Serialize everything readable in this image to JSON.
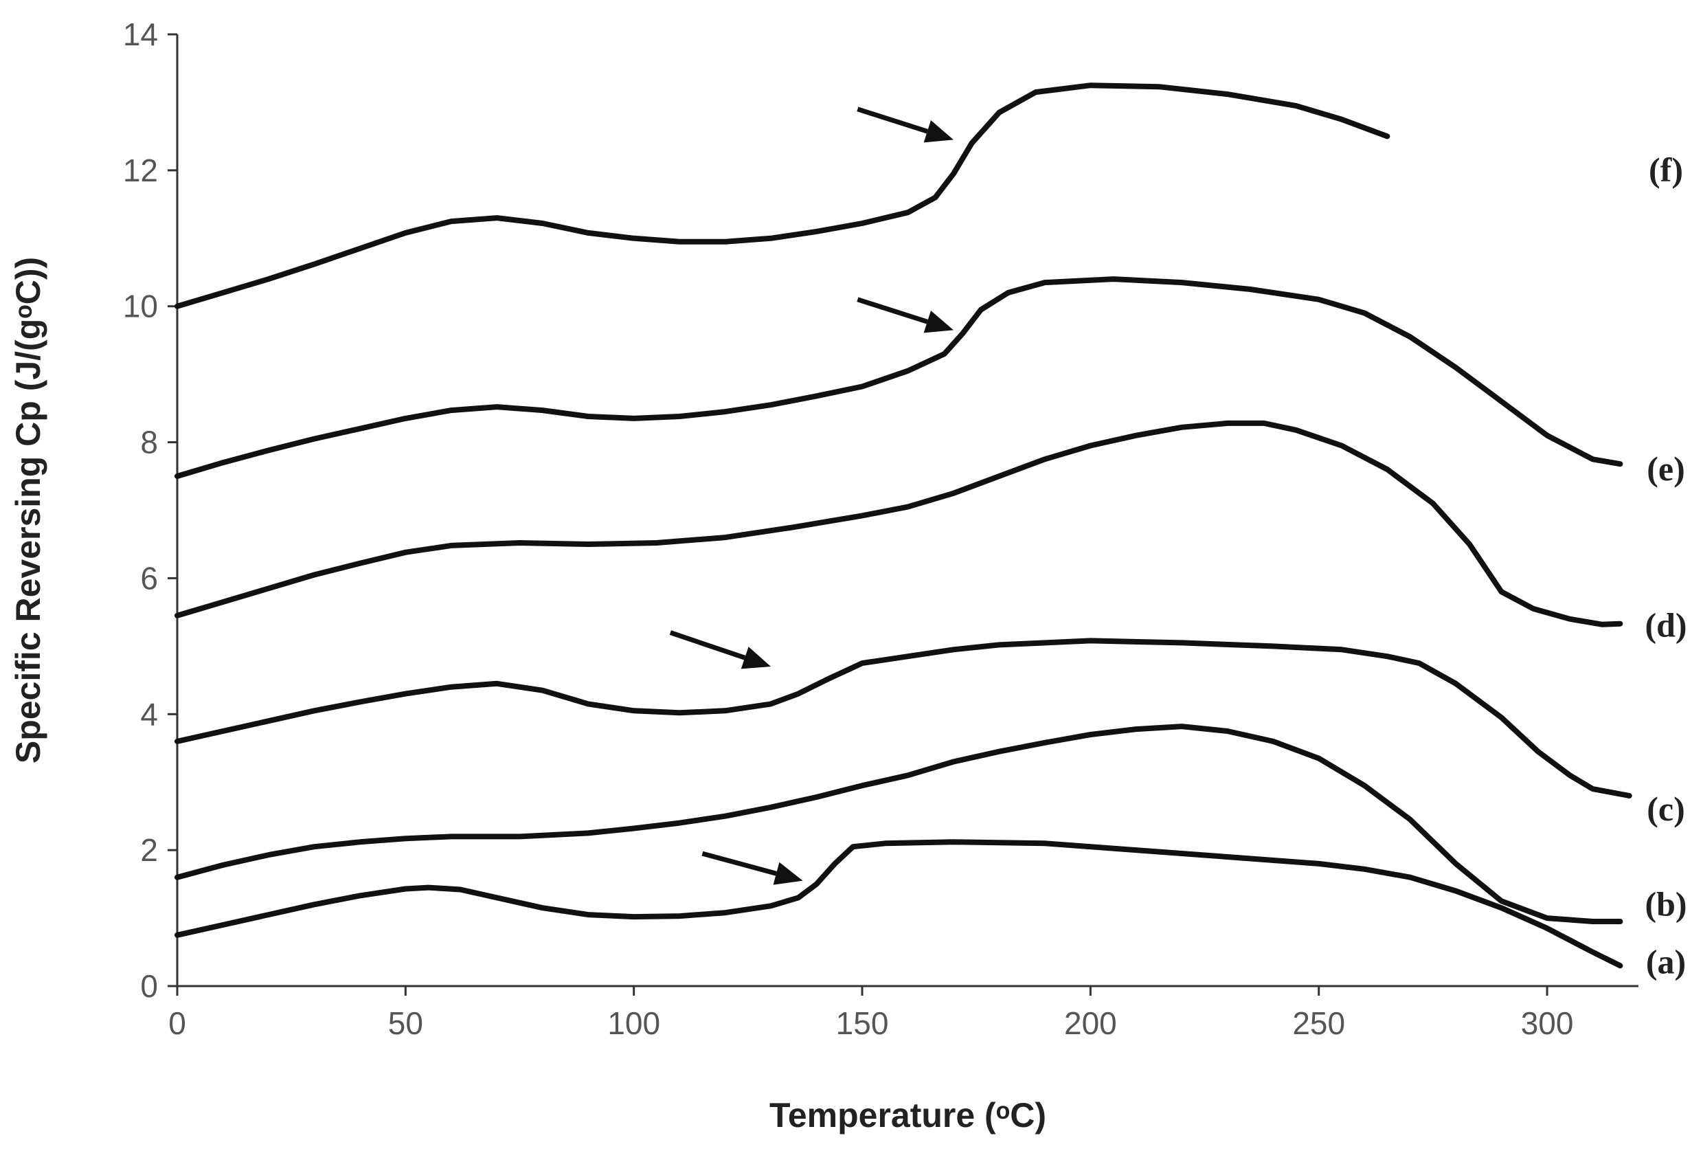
{
  "chart_data": {
    "type": "line",
    "xlabel": "Temperature (ᵒC)",
    "ylabel": "Specific Reversing Cp (J/(gᵒC))",
    "xlim": [
      0,
      320
    ],
    "ylim": [
      0,
      14
    ],
    "xticks": [
      0,
      50,
      100,
      150,
      200,
      250,
      300
    ],
    "yticks": [
      0,
      2,
      4,
      6,
      8,
      10,
      12,
      14
    ],
    "grid": false,
    "series": [
      {
        "name": "(a)",
        "points": [
          [
            0,
            0.75
          ],
          [
            10,
            0.9
          ],
          [
            20,
            1.05
          ],
          [
            30,
            1.2
          ],
          [
            40,
            1.33
          ],
          [
            50,
            1.43
          ],
          [
            55,
            1.45
          ],
          [
            62,
            1.42
          ],
          [
            70,
            1.3
          ],
          [
            80,
            1.15
          ],
          [
            90,
            1.05
          ],
          [
            100,
            1.02
          ],
          [
            110,
            1.03
          ],
          [
            120,
            1.08
          ],
          [
            130,
            1.18
          ],
          [
            136,
            1.3
          ],
          [
            140,
            1.5
          ],
          [
            144,
            1.8
          ],
          [
            148,
            2.05
          ],
          [
            155,
            2.1
          ],
          [
            170,
            2.12
          ],
          [
            190,
            2.1
          ],
          [
            210,
            2.0
          ],
          [
            230,
            1.9
          ],
          [
            250,
            1.8
          ],
          [
            260,
            1.72
          ],
          [
            270,
            1.6
          ],
          [
            280,
            1.4
          ],
          [
            290,
            1.15
          ],
          [
            300,
            0.85
          ],
          [
            310,
            0.5
          ],
          [
            316,
            0.3
          ]
        ]
      },
      {
        "name": "(b)",
        "points": [
          [
            0,
            1.6
          ],
          [
            10,
            1.78
          ],
          [
            20,
            1.93
          ],
          [
            30,
            2.05
          ],
          [
            40,
            2.12
          ],
          [
            50,
            2.17
          ],
          [
            60,
            2.2
          ],
          [
            75,
            2.2
          ],
          [
            90,
            2.25
          ],
          [
            100,
            2.32
          ],
          [
            110,
            2.4
          ],
          [
            120,
            2.5
          ],
          [
            130,
            2.63
          ],
          [
            140,
            2.78
          ],
          [
            150,
            2.95
          ],
          [
            160,
            3.1
          ],
          [
            170,
            3.3
          ],
          [
            180,
            3.45
          ],
          [
            190,
            3.58
          ],
          [
            200,
            3.7
          ],
          [
            210,
            3.78
          ],
          [
            220,
            3.82
          ],
          [
            230,
            3.75
          ],
          [
            240,
            3.6
          ],
          [
            250,
            3.35
          ],
          [
            260,
            2.95
          ],
          [
            270,
            2.45
          ],
          [
            280,
            1.8
          ],
          [
            290,
            1.25
          ],
          [
            300,
            1.0
          ],
          [
            310,
            0.95
          ],
          [
            316,
            0.95
          ]
        ]
      },
      {
        "name": "(c)",
        "points": [
          [
            0,
            3.6
          ],
          [
            10,
            3.75
          ],
          [
            20,
            3.9
          ],
          [
            30,
            4.05
          ],
          [
            40,
            4.18
          ],
          [
            50,
            4.3
          ],
          [
            60,
            4.4
          ],
          [
            70,
            4.45
          ],
          [
            80,
            4.35
          ],
          [
            90,
            4.15
          ],
          [
            100,
            4.05
          ],
          [
            110,
            4.02
          ],
          [
            120,
            4.05
          ],
          [
            130,
            4.15
          ],
          [
            136,
            4.3
          ],
          [
            142,
            4.5
          ],
          [
            150,
            4.75
          ],
          [
            160,
            4.85
          ],
          [
            170,
            4.95
          ],
          [
            180,
            5.02
          ],
          [
            200,
            5.08
          ],
          [
            220,
            5.05
          ],
          [
            240,
            5.0
          ],
          [
            255,
            4.95
          ],
          [
            265,
            4.85
          ],
          [
            272,
            4.75
          ],
          [
            280,
            4.45
          ],
          [
            290,
            3.95
          ],
          [
            298,
            3.45
          ],
          [
            305,
            3.1
          ],
          [
            310,
            2.9
          ],
          [
            318,
            2.8
          ]
        ]
      },
      {
        "name": "(d)",
        "points": [
          [
            0,
            5.45
          ],
          [
            10,
            5.65
          ],
          [
            20,
            5.85
          ],
          [
            30,
            6.05
          ],
          [
            40,
            6.22
          ],
          [
            50,
            6.38
          ],
          [
            60,
            6.48
          ],
          [
            75,
            6.52
          ],
          [
            90,
            6.5
          ],
          [
            105,
            6.52
          ],
          [
            120,
            6.6
          ],
          [
            135,
            6.75
          ],
          [
            150,
            6.92
          ],
          [
            160,
            7.05
          ],
          [
            170,
            7.25
          ],
          [
            180,
            7.5
          ],
          [
            190,
            7.75
          ],
          [
            200,
            7.95
          ],
          [
            210,
            8.1
          ],
          [
            220,
            8.22
          ],
          [
            230,
            8.28
          ],
          [
            238,
            8.28
          ],
          [
            245,
            8.18
          ],
          [
            255,
            7.95
          ],
          [
            265,
            7.6
          ],
          [
            275,
            7.1
          ],
          [
            283,
            6.5
          ],
          [
            290,
            5.8
          ],
          [
            297,
            5.55
          ],
          [
            305,
            5.4
          ],
          [
            312,
            5.32
          ],
          [
            316,
            5.33
          ]
        ]
      },
      {
        "name": "(e)",
        "points": [
          [
            0,
            7.5
          ],
          [
            10,
            7.7
          ],
          [
            20,
            7.88
          ],
          [
            30,
            8.05
          ],
          [
            40,
            8.2
          ],
          [
            50,
            8.35
          ],
          [
            60,
            8.47
          ],
          [
            70,
            8.52
          ],
          [
            80,
            8.47
          ],
          [
            90,
            8.38
          ],
          [
            100,
            8.35
          ],
          [
            110,
            8.38
          ],
          [
            120,
            8.45
          ],
          [
            130,
            8.55
          ],
          [
            140,
            8.68
          ],
          [
            150,
            8.82
          ],
          [
            160,
            9.05
          ],
          [
            168,
            9.3
          ],
          [
            172,
            9.6
          ],
          [
            176,
            9.95
          ],
          [
            182,
            10.2
          ],
          [
            190,
            10.35
          ],
          [
            205,
            10.4
          ],
          [
            220,
            10.35
          ],
          [
            235,
            10.25
          ],
          [
            250,
            10.1
          ],
          [
            260,
            9.9
          ],
          [
            270,
            9.55
          ],
          [
            280,
            9.1
          ],
          [
            290,
            8.6
          ],
          [
            300,
            8.1
          ],
          [
            310,
            7.75
          ],
          [
            316,
            7.68
          ]
        ]
      },
      {
        "name": "(f)",
        "points": [
          [
            0,
            10.0
          ],
          [
            10,
            10.2
          ],
          [
            20,
            10.4
          ],
          [
            30,
            10.62
          ],
          [
            40,
            10.85
          ],
          [
            50,
            11.08
          ],
          [
            60,
            11.25
          ],
          [
            70,
            11.3
          ],
          [
            80,
            11.22
          ],
          [
            90,
            11.08
          ],
          [
            100,
            11.0
          ],
          [
            110,
            10.95
          ],
          [
            120,
            10.95
          ],
          [
            130,
            11.0
          ],
          [
            140,
            11.1
          ],
          [
            150,
            11.22
          ],
          [
            160,
            11.38
          ],
          [
            166,
            11.6
          ],
          [
            170,
            11.95
          ],
          [
            174,
            12.4
          ],
          [
            180,
            12.85
          ],
          [
            188,
            13.15
          ],
          [
            200,
            13.25
          ],
          [
            215,
            13.23
          ],
          [
            230,
            13.12
          ],
          [
            245,
            12.95
          ],
          [
            255,
            12.75
          ],
          [
            265,
            12.5
          ]
        ]
      }
    ],
    "arrows": [
      {
        "series": "(a)",
        "tail": [
          115,
          1.95
        ],
        "head": [
          137,
          1.55
        ]
      },
      {
        "series": "(c)",
        "tail": [
          108,
          5.2
        ],
        "head": [
          130,
          4.7
        ]
      },
      {
        "series": "(e)",
        "tail": [
          149,
          10.1
        ],
        "head": [
          170,
          9.65
        ]
      },
      {
        "series": "(f)",
        "tail": [
          149,
          12.9
        ],
        "head": [
          170,
          12.45
        ]
      }
    ],
    "label_positions": {
      "(a)": 0.35,
      "(b)": 1.2,
      "(c)": 2.6,
      "(d)": 5.3,
      "(e)": 7.6,
      "(f)": 12.0
    }
  }
}
